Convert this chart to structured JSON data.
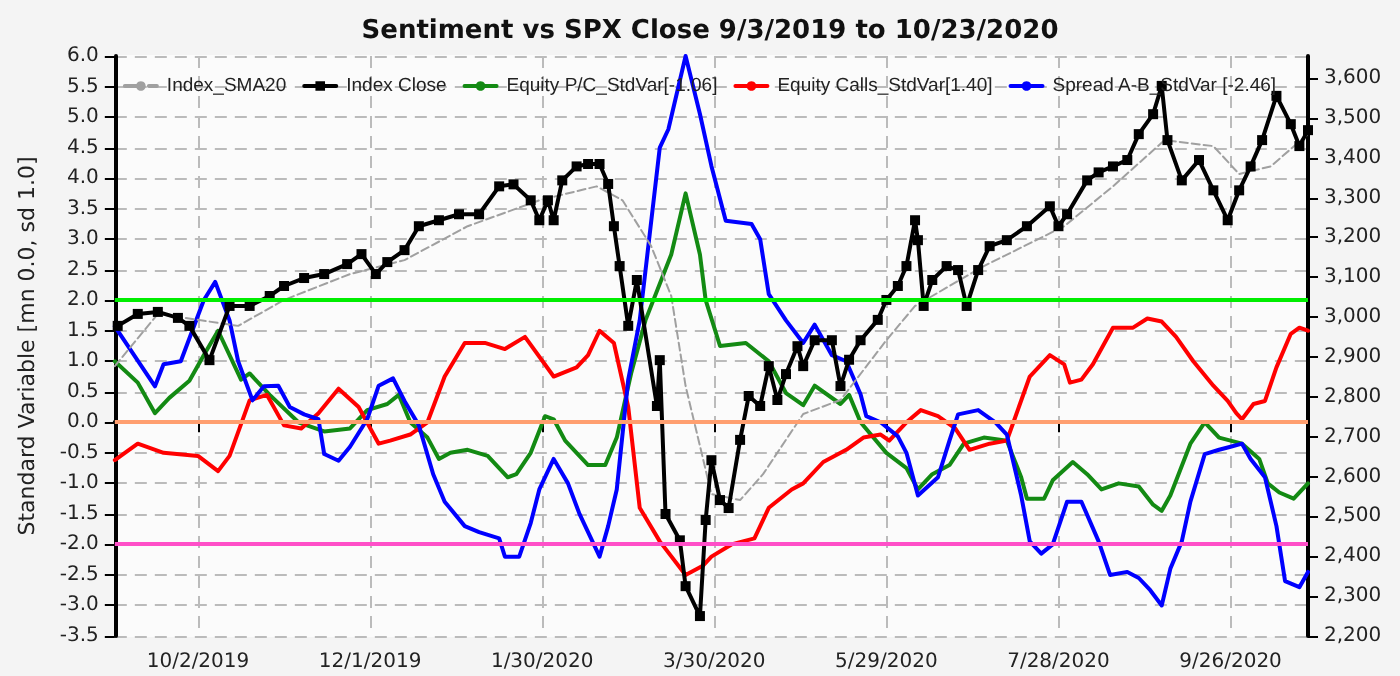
{
  "chart_data": {
    "type": "line",
    "title": "Sentiment vs SPX Close 9/3/2019 to 10/23/2020",
    "ylabel": "Standard Variable [mn 0.0, sd 1.0]",
    "xlim": [
      "2019-09-03",
      "2020-10-23"
    ],
    "xticks": [
      {
        "value": "2019-10-02",
        "label": "10/2/2019"
      },
      {
        "value": "2019-12-01",
        "label": "12/1/2019"
      },
      {
        "value": "2020-01-30",
        "label": "1/30/2020"
      },
      {
        "value": "2020-03-30",
        "label": "3/30/2020"
      },
      {
        "value": "2020-05-29",
        "label": "5/29/2020"
      },
      {
        "value": "2020-07-28",
        "label": "7/28/2020"
      },
      {
        "value": "2020-09-26",
        "label": "9/26/2020"
      }
    ],
    "ylim": [
      -3.5,
      6.0
    ],
    "yticks": [
      {
        "value": -3.5,
        "label": "-3.5"
      },
      {
        "value": -3,
        "label": "-3.0"
      },
      {
        "value": -2.5,
        "label": "-2.5"
      },
      {
        "value": -2,
        "label": "-2.0"
      },
      {
        "value": -1.5,
        "label": "-1.5"
      },
      {
        "value": -1,
        "label": "-1.0"
      },
      {
        "value": -0.5,
        "label": "-0.5"
      },
      {
        "value": 0,
        "label": "0.0"
      },
      {
        "value": 0.5,
        "label": "0.5"
      },
      {
        "value": 1,
        "label": "1.0"
      },
      {
        "value": 1.5,
        "label": "1.5"
      },
      {
        "value": 2,
        "label": "2.0"
      },
      {
        "value": 2.5,
        "label": "2.5"
      },
      {
        "value": 3,
        "label": "3.0"
      },
      {
        "value": 3.5,
        "label": "3.5"
      },
      {
        "value": 4,
        "label": "4.0"
      },
      {
        "value": 4.5,
        "label": "4.5"
      },
      {
        "value": 5,
        "label": "5.0"
      },
      {
        "value": 5.5,
        "label": "5.5"
      },
      {
        "value": 6,
        "label": "6.0"
      }
    ],
    "y2lim": [
      2200,
      3655
    ],
    "y2ticks": [
      {
        "value": 2200,
        "label": "2,200"
      },
      {
        "value": 2300,
        "label": "2,300"
      },
      {
        "value": 2400,
        "label": "2,400"
      },
      {
        "value": 2500,
        "label": "2,500"
      },
      {
        "value": 2600,
        "label": "2,600"
      },
      {
        "value": 2700,
        "label": "2,700"
      },
      {
        "value": 2800,
        "label": "2,800"
      },
      {
        "value": 2900,
        "label": "2,900"
      },
      {
        "value": 3000,
        "label": "3,000"
      },
      {
        "value": 3100,
        "label": "3,100"
      },
      {
        "value": 3200,
        "label": "3,200"
      },
      {
        "value": 3300,
        "label": "3,300"
      },
      {
        "value": 3400,
        "label": "3,400"
      },
      {
        "value": 3500,
        "label": "3,500"
      },
      {
        "value": 3600,
        "label": "3,600"
      }
    ],
    "grid": true,
    "legend": "top",
    "ref_lines": [
      {
        "axis": "y",
        "value": 2,
        "color": "#00ee00"
      },
      {
        "axis": "y",
        "value": 0,
        "color": "#ff9f70"
      },
      {
        "axis": "y",
        "value": -2,
        "color": "#ff4fc8"
      }
    ],
    "series": [
      {
        "name": "Index_SMA20",
        "color": "#a0a0a0",
        "axis": "y2",
        "line_style": "dashed",
        "marker": "none",
        "x": [
          "2019-09-03",
          "2019-09-18",
          "2019-10-16",
          "2019-11-01",
          "2019-11-24",
          "2019-12-13",
          "2020-01-04",
          "2020-01-29",
          "2020-02-18",
          "2020-02-27",
          "2020-03-08",
          "2020-03-15",
          "2020-03-20",
          "2020-03-25",
          "2020-03-29",
          "2020-04-08",
          "2020-04-16",
          "2020-04-30",
          "2020-05-13",
          "2020-05-29",
          "2020-06-08",
          "2020-07-02",
          "2020-07-30",
          "2020-08-16",
          "2020-09-03",
          "2020-09-20",
          "2020-09-29",
          "2020-10-10",
          "2020-10-23"
        ],
        "values": [
          2877,
          3008,
          2978,
          3043,
          3108,
          3143,
          3228,
          3293,
          3328,
          3293,
          3178,
          3053,
          2827,
          2677,
          2556,
          2541,
          2606,
          2757,
          2792,
          2942,
          3028,
          3128,
          3228,
          3328,
          3444,
          3429,
          3359,
          3378,
          3459
        ]
      },
      {
        "name": "Index Close",
        "color": "#000000",
        "axis": "y2",
        "line_style": "solid",
        "marker": "square",
        "x": [
          "2019-09-04",
          "2019-09-11",
          "2019-09-18",
          "2019-09-25",
          "2019-09-29",
          "2019-10-06",
          "2019-10-13",
          "2019-10-20",
          "2019-10-27",
          "2019-11-01",
          "2019-11-08",
          "2019-11-15",
          "2019-11-23",
          "2019-11-28",
          "2019-12-03",
          "2019-12-07",
          "2019-12-13",
          "2019-12-18",
          "2019-12-25",
          "2020-01-01",
          "2020-01-08",
          "2020-01-15",
          "2020-01-20",
          "2020-01-26",
          "2020-01-29",
          "2020-02-01",
          "2020-02-03",
          "2020-02-06",
          "2020-02-11",
          "2020-02-15",
          "2020-02-19",
          "2020-02-22",
          "2020-02-24",
          "2020-02-26",
          "2020-02-29",
          "2020-03-03",
          "2020-03-10",
          "2020-03-11",
          "2020-03-13",
          "2020-03-18",
          "2020-03-20",
          "2020-03-25",
          "2020-03-27",
          "2020-03-29",
          "2020-04-01",
          "2020-04-04",
          "2020-04-08",
          "2020-04-11",
          "2020-04-15",
          "2020-04-18",
          "2020-04-21",
          "2020-04-24",
          "2020-04-28",
          "2020-04-30",
          "2020-05-04",
          "2020-05-10",
          "2020-05-13",
          "2020-05-16",
          "2020-05-20",
          "2020-05-26",
          "2020-05-29",
          "2020-06-02",
          "2020-06-05",
          "2020-06-08",
          "2020-06-09",
          "2020-06-11",
          "2020-06-14",
          "2020-06-19",
          "2020-06-23",
          "2020-06-26",
          "2020-06-30",
          "2020-07-04",
          "2020-07-10",
          "2020-07-17",
          "2020-07-25",
          "2020-07-28",
          "2020-07-31",
          "2020-08-07",
          "2020-08-11",
          "2020-08-16",
          "2020-08-21",
          "2020-08-25",
          "2020-08-30",
          "2020-09-02",
          "2020-09-04",
          "2020-09-09",
          "2020-09-15",
          "2020-09-20",
          "2020-09-25",
          "2020-09-29",
          "2020-10-03",
          "2020-10-07",
          "2020-10-12",
          "2020-10-17",
          "2020-10-20",
          "2020-10-23"
        ],
        "values": [
          2978,
          3008,
          3013,
          2998,
          2978,
          2892,
          3028,
          3028,
          3053,
          3078,
          3098,
          3108,
          3133,
          3158,
          3108,
          3138,
          3168,
          3228,
          3243,
          3258,
          3258,
          3328,
          3333,
          3293,
          3243,
          3293,
          3243,
          3343,
          3378,
          3384,
          3384,
          3334,
          3228,
          3128,
          2978,
          3093,
          2777,
          2892,
          2506,
          2440,
          2325,
          2250,
          2491,
          2641,
          2541,
          2521,
          2692,
          2802,
          2777,
          2877,
          2792,
          2857,
          2927,
          2877,
          2942,
          2942,
          2827,
          2893,
          2942,
          2993,
          3043,
          3078,
          3128,
          3243,
          3193,
          3028,
          3093,
          3128,
          3118,
          3028,
          3118,
          3178,
          3193,
          3228,
          3278,
          3228,
          3258,
          3343,
          3363,
          3378,
          3394,
          3459,
          3509,
          3580,
          3444,
          3343,
          3394,
          3318,
          3243,
          3318,
          3378,
          3444,
          3555,
          3484,
          3429,
          3469
        ]
      },
      {
        "name": "Equity P/C_StdVar[-1.06]",
        "color": "#138a13",
        "line_style": "solid",
        "marker": "none",
        "x": [
          "2019-09-03",
          "2019-09-11",
          "2019-09-17",
          "2019-09-22",
          "2019-09-29",
          "2019-10-04",
          "2019-10-09",
          "2019-10-17",
          "2019-10-20",
          "2019-10-27",
          "2019-11-06",
          "2019-11-15",
          "2019-11-24",
          "2019-11-30",
          "2019-12-07",
          "2019-12-11",
          "2019-12-15",
          "2019-12-21",
          "2019-12-25",
          "2019-12-29",
          "2020-01-04",
          "2020-01-11",
          "2020-01-18",
          "2020-01-21",
          "2020-01-26",
          "2020-01-31",
          "2020-02-03",
          "2020-02-07",
          "2020-02-15",
          "2020-02-21",
          "2020-02-25",
          "2020-03-01",
          "2020-03-06",
          "2020-03-15",
          "2020-03-20",
          "2020-03-25",
          "2020-03-27",
          "2020-04-01",
          "2020-04-10",
          "2020-04-18",
          "2020-04-24",
          "2020-04-30",
          "2020-05-04",
          "2020-05-13",
          "2020-05-16",
          "2020-05-20",
          "2020-05-29",
          "2020-06-05",
          "2020-06-09",
          "2020-06-14",
          "2020-06-20",
          "2020-06-25",
          "2020-07-02",
          "2020-07-10",
          "2020-07-15",
          "2020-07-17",
          "2020-07-23",
          "2020-07-26",
          "2020-08-02",
          "2020-08-07",
          "2020-08-12",
          "2020-08-18",
          "2020-08-25",
          "2020-08-30",
          "2020-09-02",
          "2020-09-05",
          "2020-09-12",
          "2020-09-17",
          "2020-09-22",
          "2020-09-30",
          "2020-10-06",
          "2020-10-09",
          "2020-10-13",
          "2020-10-18",
          "2020-10-23"
        ],
        "values": [
          1.0,
          0.65,
          0.15,
          0.4,
          0.68,
          1.1,
          1.5,
          0.7,
          0.8,
          0.45,
          0.0,
          -0.15,
          -0.1,
          0.2,
          0.3,
          0.45,
          0.0,
          -0.25,
          -0.6,
          -0.5,
          -0.45,
          -0.55,
          -0.9,
          -0.85,
          -0.5,
          0.1,
          0.05,
          -0.3,
          -0.7,
          -0.7,
          -0.25,
          0.8,
          1.67,
          2.75,
          3.75,
          2.75,
          2.0,
          1.25,
          1.3,
          1.0,
          0.48,
          0.28,
          0.6,
          0.3,
          0.45,
          0.0,
          -0.5,
          -0.75,
          -1.1,
          -0.85,
          -0.7,
          -0.35,
          -0.25,
          -0.3,
          -0.9,
          -1.25,
          -1.25,
          -0.95,
          -0.65,
          -0.85,
          -1.1,
          -1.0,
          -1.05,
          -1.35,
          -1.45,
          -1.2,
          -0.35,
          0.0,
          -0.25,
          -0.35,
          -0.6,
          -1.0,
          -1.15,
          -1.25,
          -1.0
        ]
      },
      {
        "name": "Equity Calls_StdVar[1.40]",
        "color": "#ff0000",
        "line_style": "solid",
        "marker": "none",
        "x": [
          "2019-09-03",
          "2019-09-11",
          "2019-09-20",
          "2019-10-02",
          "2019-10-09",
          "2019-10-13",
          "2019-10-20",
          "2019-10-26",
          "2019-11-01",
          "2019-11-07",
          "2019-11-13",
          "2019-11-20",
          "2019-11-27",
          "2019-12-04",
          "2019-12-08",
          "2019-12-15",
          "2019-12-21",
          "2019-12-27",
          "2020-01-03",
          "2020-01-10",
          "2020-01-17",
          "2020-01-24",
          "2020-02-03",
          "2020-02-11",
          "2020-02-15",
          "2020-02-19",
          "2020-02-24",
          "2020-02-29",
          "2020-03-04",
          "2020-03-11",
          "2020-03-20",
          "2020-03-26",
          "2020-03-29",
          "2020-04-05",
          "2020-04-13",
          "2020-04-18",
          "2020-04-26",
          "2020-04-30",
          "2020-05-07",
          "2020-05-15",
          "2020-05-21",
          "2020-05-27",
          "2020-05-30",
          "2020-06-05",
          "2020-06-10",
          "2020-06-16",
          "2020-06-22",
          "2020-06-27",
          "2020-07-04",
          "2020-07-10",
          "2020-07-18",
          "2020-07-25",
          "2020-07-30",
          "2020-08-01",
          "2020-08-05",
          "2020-08-09",
          "2020-08-16",
          "2020-08-23",
          "2020-08-28",
          "2020-09-02",
          "2020-09-07",
          "2020-09-13",
          "2020-09-20",
          "2020-09-25",
          "2020-09-28",
          "2020-09-30",
          "2020-10-04",
          "2020-10-08",
          "2020-10-12",
          "2020-10-17",
          "2020-10-20",
          "2020-10-23"
        ],
        "values": [
          -0.62,
          -0.35,
          -0.5,
          -0.55,
          -0.8,
          -0.55,
          0.36,
          0.45,
          -0.05,
          -0.1,
          0.15,
          0.55,
          0.25,
          -0.35,
          -0.3,
          -0.2,
          0.0,
          0.75,
          1.3,
          1.3,
          1.2,
          1.4,
          0.75,
          0.9,
          1.1,
          1.5,
          1.3,
          0.25,
          -1.4,
          -1.95,
          -2.5,
          -2.35,
          -2.2,
          -2.0,
          -1.9,
          -1.4,
          -1.1,
          -1.0,
          -0.65,
          -0.45,
          -0.25,
          -0.2,
          -0.3,
          0.0,
          0.2,
          0.1,
          -0.1,
          -0.45,
          -0.35,
          -0.3,
          0.75,
          1.1,
          0.95,
          0.65,
          0.7,
          0.95,
          1.55,
          1.55,
          1.7,
          1.65,
          1.4,
          1.0,
          0.6,
          0.35,
          0.15,
          0.05,
          0.3,
          0.35,
          0.9,
          1.45,
          1.55,
          1.5
        ]
      },
      {
        "name": "Spread A-B_StdVar [-2.46]",
        "color": "#0000ff",
        "line_style": "solid",
        "marker": "none",
        "x": [
          "2019-09-03",
          "2019-09-17",
          "2019-09-20",
          "2019-09-26",
          "2019-10-04",
          "2019-10-08",
          "2019-10-13",
          "2019-10-16",
          "2019-10-21",
          "2019-10-25",
          "2019-10-30",
          "2019-11-03",
          "2019-11-08",
          "2019-11-13",
          "2019-11-15",
          "2019-11-20",
          "2019-11-24",
          "2019-11-30",
          "2019-12-04",
          "2019-12-09",
          "2019-12-13",
          "2019-12-18",
          "2019-12-23",
          "2019-12-27",
          "2020-01-03",
          "2020-01-08",
          "2020-01-15",
          "2020-01-17",
          "2020-01-22",
          "2020-01-26",
          "2020-01-29",
          "2020-02-03",
          "2020-02-08",
          "2020-02-12",
          "2020-02-15",
          "2020-02-19",
          "2020-02-22",
          "2020-02-25",
          "2020-02-29",
          "2020-03-04",
          "2020-03-11",
          "2020-03-14",
          "2020-03-20",
          "2020-03-25",
          "2020-03-29",
          "2020-04-03",
          "2020-04-12",
          "2020-04-15",
          "2020-04-18",
          "2020-04-24",
          "2020-04-30",
          "2020-05-04",
          "2020-05-10",
          "2020-05-15",
          "2020-05-20",
          "2020-05-22",
          "2020-05-27",
          "2020-06-02",
          "2020-06-05",
          "2020-06-09",
          "2020-06-16",
          "2020-06-20",
          "2020-06-23",
          "2020-06-30",
          "2020-07-06",
          "2020-07-10",
          "2020-07-15",
          "2020-07-18",
          "2020-07-22",
          "2020-07-26",
          "2020-07-31",
          "2020-08-05",
          "2020-08-11",
          "2020-08-15",
          "2020-08-21",
          "2020-08-25",
          "2020-08-29",
          "2020-09-02",
          "2020-09-05",
          "2020-09-09",
          "2020-09-12",
          "2020-09-17",
          "2020-09-22",
          "2020-09-26",
          "2020-09-30",
          "2020-10-03",
          "2020-10-08",
          "2020-10-12",
          "2020-10-15",
          "2020-10-20",
          "2020-10-23"
        ],
        "values": [
          1.57,
          0.59,
          0.95,
          1.0,
          2.0,
          2.3,
          1.67,
          1.0,
          0.36,
          0.59,
          0.6,
          0.25,
          0.13,
          0.05,
          -0.52,
          -0.63,
          -0.4,
          0.05,
          0.6,
          0.72,
          0.35,
          -0.05,
          -0.85,
          -1.3,
          -1.7,
          -1.8,
          -1.9,
          -2.2,
          -2.2,
          -1.65,
          -1.1,
          -0.6,
          -1.0,
          -1.5,
          -1.8,
          -2.2,
          -1.7,
          -1.1,
          0.7,
          1.67,
          4.5,
          4.8,
          6.0,
          5.05,
          4.2,
          3.3,
          3.25,
          3.0,
          2.1,
          1.67,
          1.3,
          1.6,
          1.1,
          1.0,
          0.46,
          0.1,
          0.0,
          -0.23,
          -0.5,
          -1.2,
          -0.9,
          -0.3,
          0.13,
          0.2,
          0.0,
          -0.2,
          -1.2,
          -1.95,
          -2.15,
          -2.0,
          -1.3,
          -1.3,
          -1.95,
          -2.5,
          -2.45,
          -2.55,
          -2.75,
          -3.0,
          -2.4,
          -1.95,
          -1.3,
          -0.52,
          -0.45,
          -0.4,
          -0.35,
          -0.6,
          -0.9,
          -1.7,
          -2.6,
          -2.7,
          -2.45
        ]
      }
    ]
  }
}
